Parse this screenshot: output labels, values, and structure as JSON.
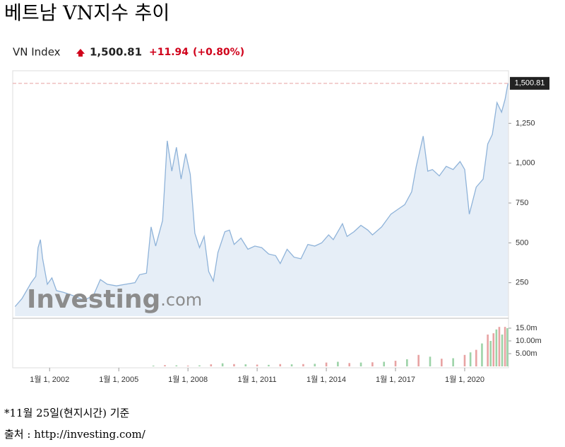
{
  "title": "베트남 VN지수 추이",
  "quote": {
    "name": "VN Index",
    "price": "1,500.81",
    "change": "+11.94",
    "change_pct": "(+0.80%)"
  },
  "watermark_main": "Investing",
  "watermark_suffix": ".com",
  "footnote": "*11월 25일(현지시간) 기준",
  "source": "출처 : http://investing.com/",
  "chart_data": [
    {
      "type": "area",
      "color": "#8fb3d9",
      "fill": "#e6eef7",
      "ref_color": "#e8a0a0",
      "x": [
        2000.5,
        2000.8,
        2001.2,
        2001.4,
        2001.5,
        2001.6,
        2001.7,
        2001.9,
        2002.1,
        2002.3,
        2002.6,
        2003.0,
        2003.5,
        2003.9,
        2004.2,
        2004.5,
        2004.9,
        2005.3,
        2005.7,
        2005.9,
        2006.2,
        2006.4,
        2006.6,
        2006.9,
        2007.1,
        2007.3,
        2007.5,
        2007.7,
        2007.9,
        2008.1,
        2008.3,
        2008.5,
        2008.7,
        2008.9,
        2009.1,
        2009.3,
        2009.6,
        2009.8,
        2010.0,
        2010.3,
        2010.6,
        2010.9,
        2011.2,
        2011.5,
        2011.8,
        2012.0,
        2012.3,
        2012.6,
        2012.9,
        2013.2,
        2013.5,
        2013.8,
        2014.1,
        2014.3,
        2014.7,
        2014.9,
        2015.2,
        2015.5,
        2015.8,
        2016.0,
        2016.4,
        2016.8,
        2017.1,
        2017.4,
        2017.7,
        2017.9,
        2018.2,
        2018.4,
        2018.6,
        2018.9,
        2019.2,
        2019.5,
        2019.8,
        2020.0,
        2020.2,
        2020.5,
        2020.8,
        2021.0,
        2021.2,
        2021.4,
        2021.6,
        2021.75,
        2021.88
      ],
      "values": [
        100,
        150,
        250,
        290,
        470,
        520,
        400,
        240,
        280,
        200,
        190,
        170,
        140,
        170,
        270,
        240,
        230,
        240,
        250,
        300,
        310,
        600,
        480,
        640,
        1140,
        950,
        1100,
        900,
        1060,
        930,
        560,
        470,
        540,
        320,
        260,
        440,
        570,
        580,
        490,
        530,
        460,
        480,
        470,
        430,
        420,
        370,
        460,
        410,
        400,
        490,
        480,
        500,
        550,
        520,
        620,
        540,
        570,
        610,
        580,
        550,
        600,
        680,
        710,
        740,
        820,
        980,
        1170,
        950,
        960,
        920,
        980,
        960,
        1010,
        960,
        680,
        850,
        900,
        1120,
        1180,
        1380,
        1320,
        1400,
        1500.81
      ],
      "xlim": [
        2000.4,
        2021.9
      ],
      "ylim": [
        40,
        1580
      ],
      "yticks": [
        250,
        500,
        750,
        {
          "value": 1000,
          "label": "1,000"
        },
        {
          "value": 1250,
          "label": "1,250"
        }
      ]
    },
    {
      "type": "bar",
      "x": [
        2006.5,
        2007,
        2007.5,
        2008,
        2008.5,
        2009,
        2009.5,
        2010,
        2010.5,
        2011,
        2011.5,
        2012,
        2012.5,
        2013,
        2013.5,
        2014,
        2014.5,
        2015,
        2015.5,
        2016,
        2016.5,
        2017,
        2017.5,
        2018,
        2018.5,
        2019,
        2019.5,
        2020,
        2020.25,
        2020.5,
        2020.75,
        2021,
        2021.125,
        2021.25,
        2021.375,
        2021.5,
        2021.625,
        2021.75,
        2021.85
      ],
      "values": [
        300000,
        500000,
        400000,
        300000,
        400000,
        800000,
        1200000,
        900000,
        800000,
        700000,
        600000,
        900000,
        800000,
        900000,
        1000000,
        1500000,
        1800000,
        1300000,
        1500000,
        1600000,
        1800000,
        2200000,
        2800000,
        4500000,
        3800000,
        3000000,
        3200000,
        4500000,
        5500000,
        6500000,
        9000000,
        12500000,
        10000000,
        13000000,
        14500000,
        15500000,
        12500000,
        15500000,
        15000000
      ],
      "colors": [
        "#9dd3a8",
        "#e8a3a3"
      ],
      "xlim": [
        2000.4,
        2021.9
      ],
      "ylim": [
        0,
        17500000
      ],
      "yticks": [
        {
          "value": 5000000,
          "label": "5.00m"
        },
        {
          "value": 10000000,
          "label": "10.00m"
        },
        {
          "value": 15000000,
          "label": "15.0m"
        }
      ],
      "xticks": [
        {
          "value": 2002,
          "label": "1월 1, 2002"
        },
        {
          "value": 2005,
          "label": "1월 1, 2005"
        },
        {
          "value": 2008,
          "label": "1월 1, 2008"
        },
        {
          "value": 2011,
          "label": "1월 1, 2011"
        },
        {
          "value": 2014,
          "label": "1월 1, 2014"
        },
        {
          "value": 2017,
          "label": "1월 1, 2017"
        },
        {
          "value": 2020,
          "label": "1월 1, 2020"
        }
      ]
    }
  ]
}
